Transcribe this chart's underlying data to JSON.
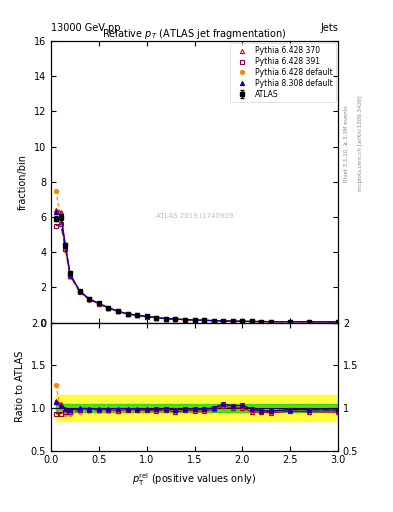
{
  "title": "Relative $p_T$ (ATLAS jet fragmentation)",
  "header_left": "13000 GeV pp",
  "header_right": "Jets",
  "ylabel_main": "fraction/bin",
  "ylabel_ratio": "Ratio to ATLAS",
  "watermark": "ATLAS 2019 I1740909",
  "right_label_top": "Rivet 3.1.10, ≥ 3.3M events",
  "right_label_bottom": "mcplots.cern.ch [arXiv:1306.3436]",
  "ylim_main": [
    0,
    16
  ],
  "ylim_ratio": [
    0.5,
    2.0
  ],
  "xlim": [
    0,
    3.0
  ],
  "x_data": [
    0.05,
    0.1,
    0.15,
    0.2,
    0.3,
    0.4,
    0.5,
    0.6,
    0.7,
    0.8,
    0.9,
    1.0,
    1.1,
    1.2,
    1.3,
    1.4,
    1.5,
    1.6,
    1.7,
    1.8,
    1.9,
    2.0,
    2.1,
    2.2,
    2.3,
    2.5,
    2.7,
    3.0
  ],
  "atlas_y": [
    5.9,
    6.0,
    4.4,
    2.8,
    1.8,
    1.35,
    1.1,
    0.85,
    0.65,
    0.5,
    0.42,
    0.35,
    0.28,
    0.23,
    0.2,
    0.17,
    0.15,
    0.13,
    0.11,
    0.09,
    0.08,
    0.07,
    0.065,
    0.06,
    0.055,
    0.05,
    0.045,
    0.04
  ],
  "atlas_err": [
    0.15,
    0.15,
    0.1,
    0.08,
    0.06,
    0.05,
    0.04,
    0.03,
    0.025,
    0.02,
    0.017,
    0.014,
    0.012,
    0.01,
    0.009,
    0.008,
    0.007,
    0.006,
    0.005,
    0.005,
    0.004,
    0.004,
    0.003,
    0.003,
    0.003,
    0.003,
    0.002,
    0.002
  ],
  "py6_370_y": [
    6.4,
    6.3,
    4.35,
    2.72,
    1.78,
    1.33,
    1.08,
    0.83,
    0.63,
    0.49,
    0.41,
    0.34,
    0.27,
    0.225,
    0.19,
    0.165,
    0.145,
    0.125,
    0.108,
    0.092,
    0.08,
    0.07,
    0.062,
    0.057,
    0.052,
    0.048,
    0.043,
    0.038
  ],
  "py6_391_y": [
    5.5,
    5.6,
    4.2,
    2.65,
    1.75,
    1.32,
    1.07,
    0.83,
    0.63,
    0.49,
    0.41,
    0.34,
    0.275,
    0.228,
    0.195,
    0.168,
    0.148,
    0.128,
    0.11,
    0.094,
    0.082,
    0.072,
    0.064,
    0.058,
    0.053,
    0.049,
    0.044,
    0.039
  ],
  "py6_def_y": [
    7.5,
    5.9,
    4.1,
    2.6,
    1.72,
    1.3,
    1.06,
    0.82,
    0.63,
    0.49,
    0.41,
    0.34,
    0.274,
    0.226,
    0.193,
    0.166,
    0.146,
    0.126,
    0.109,
    0.093,
    0.081,
    0.071,
    0.063,
    0.057,
    0.052,
    0.048,
    0.043,
    0.038
  ],
  "py8_def_y": [
    6.3,
    6.1,
    4.35,
    2.74,
    1.79,
    1.34,
    1.09,
    0.84,
    0.645,
    0.495,
    0.415,
    0.345,
    0.275,
    0.228,
    0.195,
    0.168,
    0.148,
    0.128,
    0.11,
    0.094,
    0.082,
    0.072,
    0.064,
    0.058,
    0.053,
    0.049,
    0.044,
    0.039
  ],
  "color_atlas": "#000000",
  "color_py6_370": "#cc0000",
  "color_py6_391": "#880044",
  "color_py6_def": "#ff8800",
  "color_py8_def": "#0000cc",
  "green_band_inner": 0.05,
  "yellow_band_outer": 0.15,
  "legend_entries": [
    "ATLAS",
    "Pythia 6.428 370",
    "Pythia 6.428 391",
    "Pythia 6.428 default",
    "Pythia 8.308 default"
  ]
}
